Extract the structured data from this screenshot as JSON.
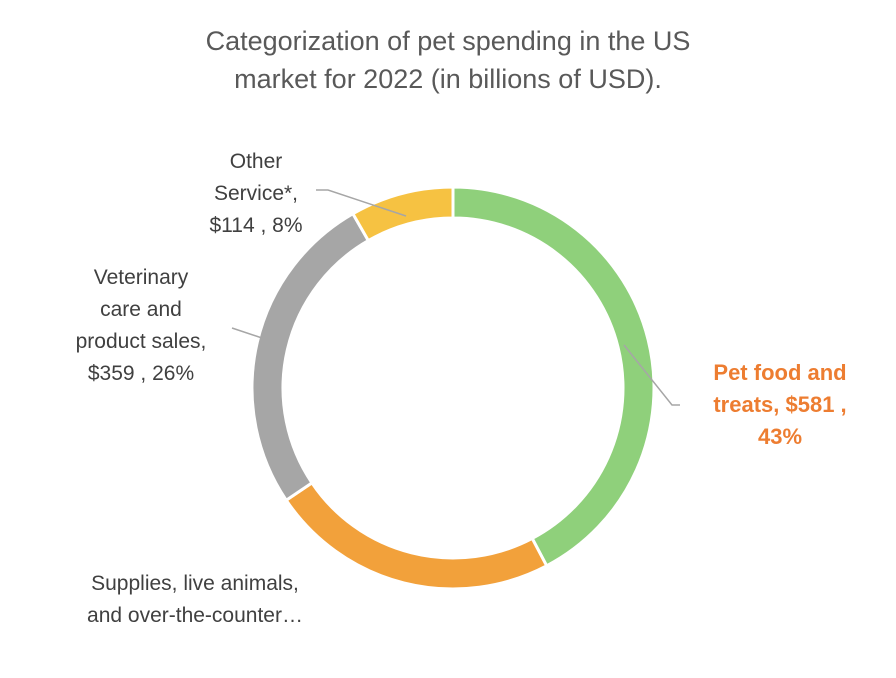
{
  "chart_data": {
    "type": "donut",
    "title_lines": [
      "Categorization of pet spending in the US",
      "market for 2022 (in billions of USD)."
    ],
    "slices": [
      {
        "name": "Pet food and treats",
        "value": 581,
        "percent": "43%",
        "color": "#8FD07B",
        "label_lines": [
          "Pet food and",
          "treats, $581 ,",
          "43%"
        ]
      },
      {
        "name": "Supplies, live animals, and over-the-counter…",
        "value": 320,
        "percent": "",
        "color": "#F2A13B",
        "label_lines": [
          "Supplies, live animals,",
          "and over-the-counter…"
        ]
      },
      {
        "name": "Veterinary care and product sales",
        "value": 359,
        "percent": "26%",
        "color": "#A6A6A6",
        "label_lines": [
          "Veterinary",
          "care and",
          "product sales,",
          "$359 , 26%"
        ]
      },
      {
        "name": "Other Service*",
        "value": 114,
        "percent": "8%",
        "color": "#F6C242",
        "label_lines": [
          "Other",
          "Service*,",
          "$114 , 8%"
        ]
      }
    ]
  }
}
